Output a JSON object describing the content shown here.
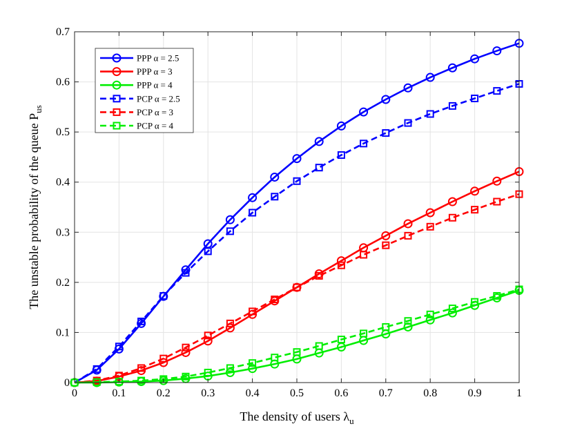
{
  "chart_data": {
    "type": "line",
    "title": "",
    "xlabel": "The density of users λ",
    "xlabel_sub": "u",
    "ylabel": "The unstable probability of the queue P",
    "ylabel_sub": "us",
    "xlim": [
      0,
      1
    ],
    "ylim": [
      0,
      0.7
    ],
    "xticks": [
      0,
      0.1,
      0.2,
      0.3,
      0.4,
      0.5,
      0.6,
      0.7,
      0.8,
      0.9,
      1
    ],
    "xtick_labels": [
      "0",
      "0.1",
      "0.2",
      "0.3",
      "0.4",
      "0.5",
      "0.6",
      "0.7",
      "0.8",
      "0.9",
      "1"
    ],
    "yticks": [
      0,
      0.1,
      0.2,
      0.3,
      0.4,
      0.5,
      0.6,
      0.7
    ],
    "ytick_labels": [
      "0",
      "0.1",
      "0.2",
      "0.3",
      "0.4",
      "0.5",
      "0.6",
      "0.7"
    ],
    "grid": true,
    "legend_position": "top-left",
    "x": [
      0,
      0.05,
      0.1,
      0.15,
      0.2,
      0.25,
      0.3,
      0.35,
      0.4,
      0.45,
      0.5,
      0.55,
      0.6,
      0.65,
      0.7,
      0.75,
      0.8,
      0.85,
      0.9,
      0.95,
      1
    ],
    "series": [
      {
        "name": "PPP  α = 2.5",
        "color": "#0000ff",
        "line_style": "solid",
        "marker": "circle",
        "values": [
          0,
          0.025,
          0.067,
          0.118,
          0.172,
          0.225,
          0.277,
          0.325,
          0.369,
          0.41,
          0.447,
          0.481,
          0.512,
          0.54,
          0.565,
          0.588,
          0.609,
          0.628,
          0.646,
          0.662,
          0.677
        ]
      },
      {
        "name": "PPP  α = 3",
        "color": "#ff0000",
        "line_style": "solid",
        "marker": "circle",
        "values": [
          0,
          0.003,
          0.012,
          0.024,
          0.04,
          0.06,
          0.083,
          0.109,
          0.136,
          0.163,
          0.19,
          0.217,
          0.243,
          0.269,
          0.293,
          0.317,
          0.339,
          0.361,
          0.382,
          0.402,
          0.421
        ]
      },
      {
        "name": "PPP  α = 4",
        "color": "#00ee00",
        "line_style": "solid",
        "marker": "circle",
        "values": [
          0,
          0,
          0.001,
          0.002,
          0.004,
          0.008,
          0.013,
          0.02,
          0.028,
          0.037,
          0.047,
          0.059,
          0.071,
          0.084,
          0.097,
          0.111,
          0.125,
          0.139,
          0.154,
          0.169,
          0.184
        ]
      },
      {
        "name": "PCP  α = 2.5",
        "color": "#0000ff",
        "line_style": "dashed",
        "marker": "square",
        "values": [
          0,
          0.027,
          0.072,
          0.122,
          0.173,
          0.219,
          0.262,
          0.302,
          0.339,
          0.371,
          0.402,
          0.429,
          0.454,
          0.477,
          0.498,
          0.518,
          0.536,
          0.552,
          0.567,
          0.582,
          0.596
        ]
      },
      {
        "name": "PCP  α = 3",
        "color": "#ff0000",
        "line_style": "dashed",
        "marker": "square",
        "values": [
          0,
          0.004,
          0.014,
          0.029,
          0.048,
          0.07,
          0.094,
          0.118,
          0.142,
          0.166,
          0.19,
          0.213,
          0.234,
          0.255,
          0.274,
          0.293,
          0.311,
          0.329,
          0.345,
          0.361,
          0.376
        ]
      },
      {
        "name": "PCP  α = 4",
        "color": "#00ee00",
        "line_style": "dashed",
        "marker": "square",
        "values": [
          0,
          0.001,
          0.002,
          0.004,
          0.007,
          0.012,
          0.02,
          0.029,
          0.039,
          0.05,
          0.061,
          0.073,
          0.086,
          0.098,
          0.111,
          0.123,
          0.136,
          0.148,
          0.161,
          0.173,
          0.186
        ]
      }
    ]
  }
}
